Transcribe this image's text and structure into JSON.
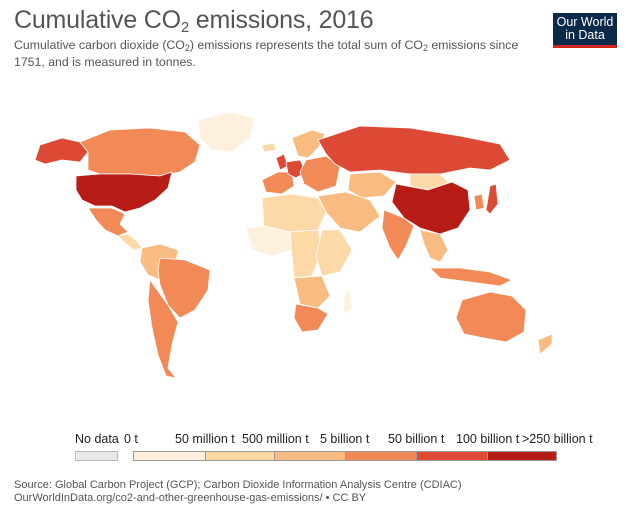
{
  "header": {
    "title_prefix": "Cumulative CO",
    "title_sub": "2",
    "title_suffix": " emissions, 2016",
    "subtitle_part1": "Cumulative carbon dioxide (CO",
    "subtitle_sub1": "2",
    "subtitle_part2": ") emissions represents the total sum of CO",
    "subtitle_sub2": "2",
    "subtitle_part3": " emissions since 1751, and is measured in tonnes."
  },
  "logo": {
    "line1": "Our World",
    "line2": "in Data",
    "bg": "#0b2a4a",
    "accent": "#ce261e"
  },
  "legend": {
    "no_data_label": "No data",
    "no_data_color": "#e8e8e8",
    "bins": [
      {
        "label": "0 t",
        "color": "#fdf0dc"
      },
      {
        "label": "50 million t",
        "color": "#fcd9a6"
      },
      {
        "label": "500 million t",
        "color": "#f8bb80"
      },
      {
        "label": "5 billion t",
        "color": "#f28a58"
      },
      {
        "label": "50 billion t",
        "color": "#dc4a35"
      },
      {
        "label": "100 billion t",
        "color": "#b71d16"
      }
    ],
    "last_label": ">250 billion t"
  },
  "source": {
    "line1": "Source: Global Carbon Project (GCP); Carbon Dioxide Information Analysis Centre (CDIAC)",
    "line2": "OurWorldInData.org/co2-and-other-greenhouse-gas-emissions/ • CC BY"
  },
  "map": {
    "land_stroke": "#ffffff",
    "regions": [
      {
        "id": "alaska",
        "color": "#dc4a35"
      },
      {
        "id": "canada",
        "color": "#f28a58"
      },
      {
        "id": "greenland",
        "color": "#fdf0dc"
      },
      {
        "id": "usa",
        "color": "#b71d16"
      },
      {
        "id": "mexico",
        "color": "#f28a58"
      },
      {
        "id": "central-america",
        "color": "#fcd9a6"
      },
      {
        "id": "south-america-north",
        "color": "#f8bb80"
      },
      {
        "id": "brazil",
        "color": "#f28a58"
      },
      {
        "id": "south-america-south",
        "color": "#f28a58"
      },
      {
        "id": "europe-west",
        "color": "#f28a58"
      },
      {
        "id": "uk",
        "color": "#dc4a35"
      },
      {
        "id": "germany",
        "color": "#dc4a35"
      },
      {
        "id": "scandinavia",
        "color": "#f8bb80"
      },
      {
        "id": "eastern-europe",
        "color": "#f28a58"
      },
      {
        "id": "russia",
        "color": "#dc4a35"
      },
      {
        "id": "middle-east",
        "color": "#f8bb80"
      },
      {
        "id": "north-africa",
        "color": "#fcd9a6"
      },
      {
        "id": "west-africa",
        "color": "#fdf0dc"
      },
      {
        "id": "central-africa",
        "color": "#fcd9a6"
      },
      {
        "id": "east-africa",
        "color": "#fcd9a6"
      },
      {
        "id": "southern-africa",
        "color": "#f8bb80"
      },
      {
        "id": "south-africa",
        "color": "#f28a58"
      },
      {
        "id": "central-asia",
        "color": "#f8bb80"
      },
      {
        "id": "india",
        "color": "#f28a58"
      },
      {
        "id": "china",
        "color": "#b71d16"
      },
      {
        "id": "mongolia",
        "color": "#fcd9a6"
      },
      {
        "id": "japan",
        "color": "#dc4a35"
      },
      {
        "id": "korea",
        "color": "#f28a58"
      },
      {
        "id": "southeast-asia",
        "color": "#f8bb80"
      },
      {
        "id": "indonesia",
        "color": "#f28a58"
      },
      {
        "id": "australia",
        "color": "#f28a58"
      },
      {
        "id": "new-zealand",
        "color": "#f8bb80"
      },
      {
        "id": "iceland",
        "color": "#fcd9a6"
      },
      {
        "id": "madagascar",
        "color": "#fdf0dc"
      }
    ]
  }
}
